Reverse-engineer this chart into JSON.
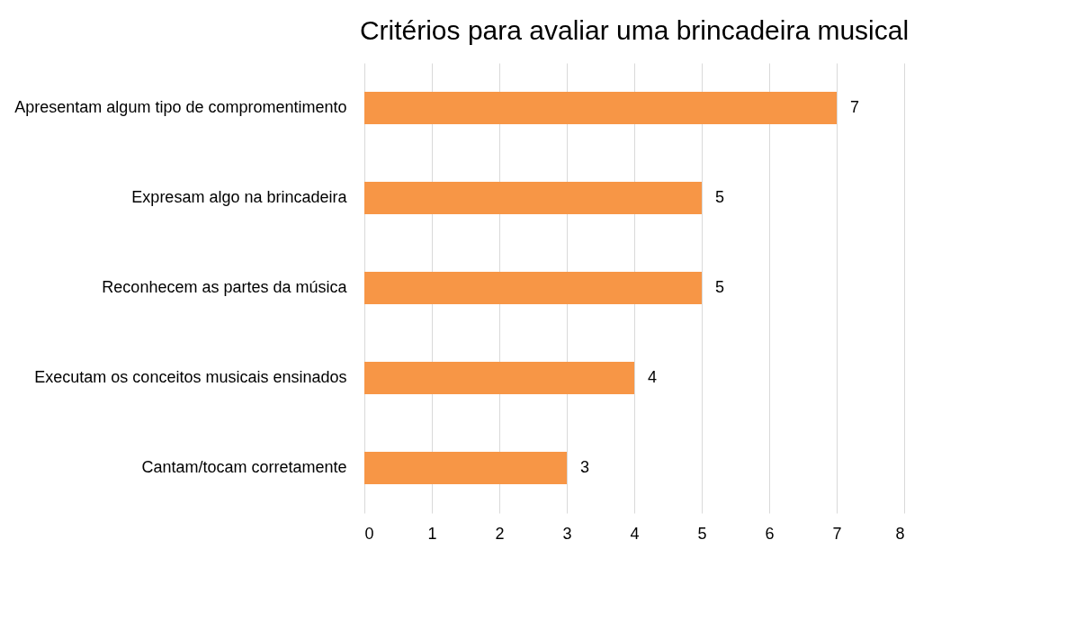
{
  "chart_data": {
    "type": "bar",
    "orientation": "horizontal",
    "title": "Critérios para avaliar uma brincadeira musical",
    "categories": [
      "Apresentam algum tipo de compromentimento",
      "Expresam algo na brincadeira",
      "Reconhecem as partes da música",
      "Executam os conceitos musicais ensinados",
      "Cantam/tocam corretamente"
    ],
    "values": [
      7,
      5,
      5,
      4,
      3
    ],
    "color": "#f79646",
    "xlim": [
      0,
      8
    ],
    "xticks": [
      0,
      1,
      2,
      3,
      4,
      5,
      6,
      7,
      8
    ],
    "grid": "x",
    "data_labels": true
  }
}
